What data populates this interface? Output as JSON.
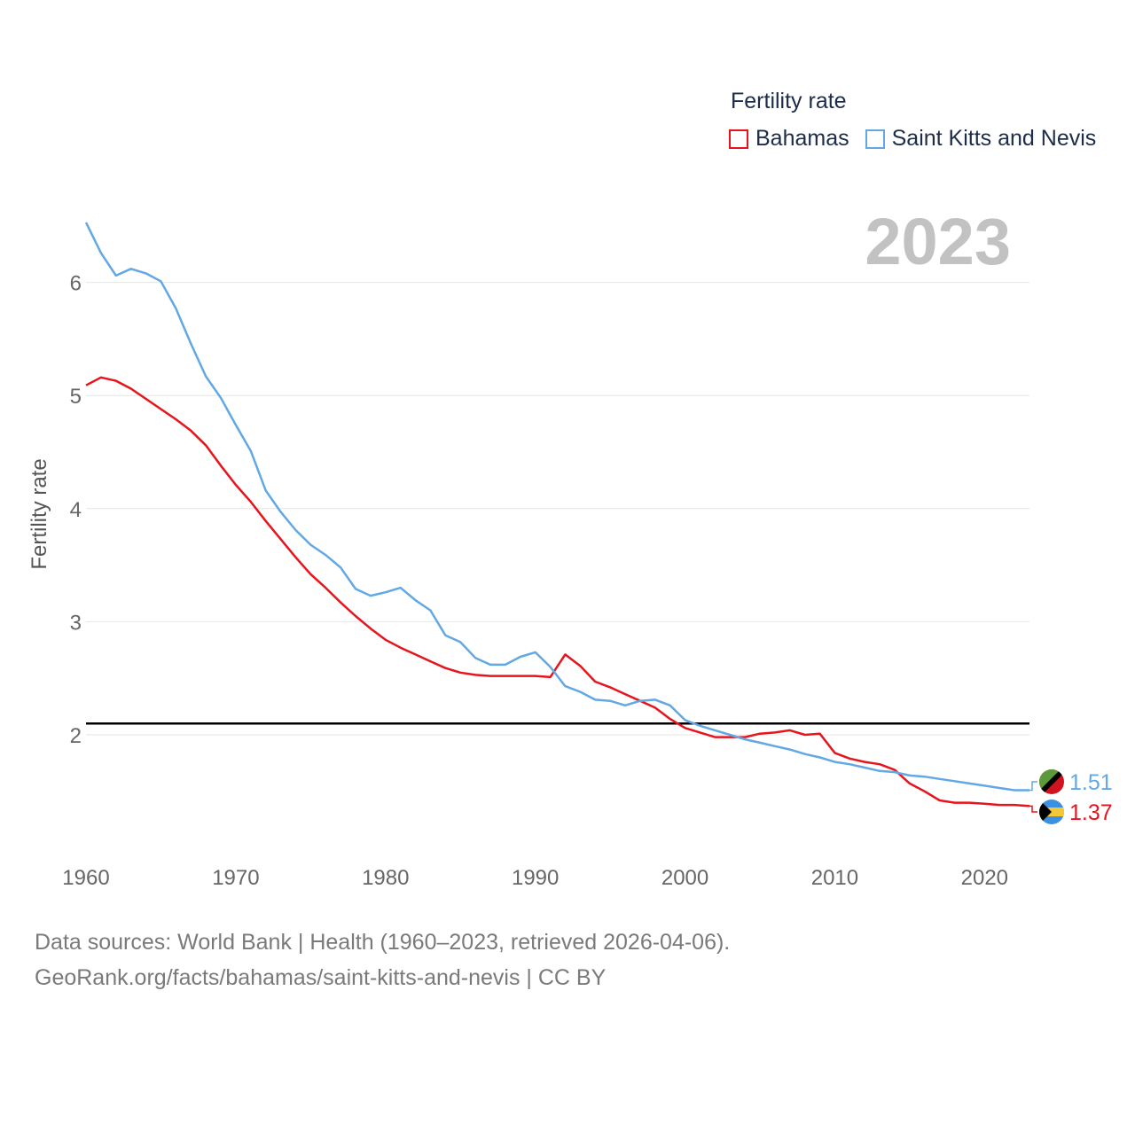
{
  "legend": {
    "title": "Fertility rate",
    "items": [
      {
        "label": "Bahamas",
        "color": "#e8141c"
      },
      {
        "label": "Saint Kitts and Nevis",
        "color": "#62a8e5"
      }
    ]
  },
  "year_label": "2023",
  "sources": {
    "line1": "Data sources: World Bank | Health (1960–2023, retrieved 2026-04-06).",
    "line2": "GeoRank.org/facts/bahamas/saint-kitts-and-nevis | CC BY"
  },
  "chart_data": {
    "type": "line",
    "title": "Fertility rate",
    "xlabel": "",
    "ylabel": "Fertility rate",
    "xlim": [
      1960,
      2023
    ],
    "ylim": [
      1,
      6.6
    ],
    "x_ticks": [
      1960,
      1970,
      1980,
      1990,
      2000,
      2010,
      2020
    ],
    "y_ticks": [
      2,
      3,
      4,
      5,
      6
    ],
    "grid": true,
    "reference_line": 2.1,
    "x": [
      1960,
      1961,
      1962,
      1963,
      1964,
      1965,
      1966,
      1967,
      1968,
      1969,
      1970,
      1971,
      1972,
      1973,
      1974,
      1975,
      1976,
      1977,
      1978,
      1979,
      1980,
      1981,
      1982,
      1983,
      1984,
      1985,
      1986,
      1987,
      1988,
      1989,
      1990,
      1991,
      1992,
      1993,
      1994,
      1995,
      1996,
      1997,
      1998,
      1999,
      2000,
      2001,
      2002,
      2003,
      2004,
      2005,
      2006,
      2007,
      2008,
      2009,
      2010,
      2011,
      2012,
      2013,
      2014,
      2015,
      2016,
      2017,
      2018,
      2019,
      2020,
      2021,
      2022,
      2023
    ],
    "series": [
      {
        "name": "Bahamas",
        "color": "#e8141c",
        "end_label": "1.37",
        "values": [
          5.09,
          5.16,
          5.13,
          5.06,
          4.97,
          4.88,
          4.79,
          4.69,
          4.56,
          4.38,
          4.21,
          4.06,
          3.89,
          3.73,
          3.57,
          3.42,
          3.3,
          3.17,
          3.05,
          2.94,
          2.84,
          2.77,
          2.71,
          2.65,
          2.59,
          2.55,
          2.53,
          2.52,
          2.52,
          2.52,
          2.52,
          2.51,
          2.71,
          2.61,
          2.47,
          2.42,
          2.36,
          2.3,
          2.24,
          2.14,
          2.06,
          2.02,
          1.98,
          1.98,
          1.98,
          2.01,
          2.02,
          2.04,
          2.0,
          2.01,
          1.84,
          1.79,
          1.76,
          1.74,
          1.69,
          1.57,
          1.5,
          1.42,
          1.4,
          1.4,
          1.39,
          1.38,
          1.38,
          1.37
        ]
      },
      {
        "name": "Saint Kitts and Nevis",
        "color": "#62a8e5",
        "end_label": "1.51",
        "values": [
          6.53,
          6.26,
          6.06,
          6.12,
          6.08,
          6.01,
          5.77,
          5.46,
          5.17,
          4.98,
          4.74,
          4.51,
          4.16,
          3.97,
          3.81,
          3.68,
          3.59,
          3.48,
          3.29,
          3.23,
          3.26,
          3.3,
          3.19,
          3.1,
          2.88,
          2.82,
          2.68,
          2.62,
          2.62,
          2.69,
          2.73,
          2.6,
          2.43,
          2.38,
          2.31,
          2.3,
          2.26,
          2.3,
          2.31,
          2.26,
          2.13,
          2.08,
          2.04,
          2.0,
          1.96,
          1.93,
          1.9,
          1.87,
          1.83,
          1.8,
          1.76,
          1.74,
          1.71,
          1.68,
          1.67,
          1.64,
          1.63,
          1.61,
          1.59,
          1.57,
          1.55,
          1.53,
          1.51,
          1.51
        ]
      }
    ]
  }
}
